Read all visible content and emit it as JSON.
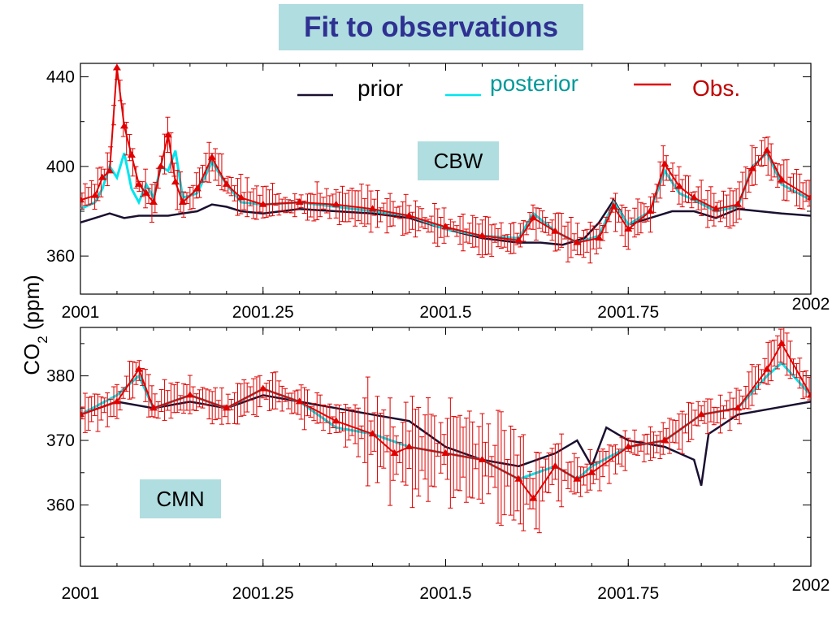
{
  "title": "Fit to observations",
  "y_axis_label_main": "CO",
  "y_axis_label_sub": "2",
  "y_axis_label_unit": " (ppm)",
  "legend": [
    {
      "label": "prior",
      "color": "#1a1030"
    },
    {
      "label": "posterior",
      "color": "#00e5ee"
    },
    {
      "label": "Obs.",
      "color": "#e00000"
    }
  ],
  "chart_data": [
    {
      "type": "line",
      "station": "CBW",
      "xlim": [
        2001,
        2002
      ],
      "ylim": [
        343,
        446
      ],
      "xticks": [
        2001,
        2001.25,
        2001.5,
        2001.75,
        2002
      ],
      "xtick_labels": [
        "2001",
        "2001.25",
        "2001.5",
        "2001.75",
        "2002"
      ],
      "yticks": [
        360,
        400,
        440
      ],
      "ytick_labels": [
        "360",
        "400",
        "440"
      ],
      "series": [
        {
          "name": "prior",
          "x": [
            2001.0,
            2001.02,
            2001.04,
            2001.06,
            2001.08,
            2001.1,
            2001.12,
            2001.14,
            2001.16,
            2001.18,
            2001.2,
            2001.22,
            2001.25,
            2001.3,
            2001.35,
            2001.4,
            2001.45,
            2001.5,
            2001.55,
            2001.6,
            2001.63,
            2001.66,
            2001.69,
            2001.71,
            2001.73,
            2001.75,
            2001.78,
            2001.81,
            2001.84,
            2001.87,
            2001.9,
            2001.93,
            2001.96,
            2002.0
          ],
          "y": [
            375,
            377,
            379,
            377,
            378,
            378,
            378,
            379,
            380,
            383,
            382,
            380,
            379,
            381,
            380,
            379,
            377,
            372,
            368,
            366,
            366,
            365,
            368,
            375,
            385,
            374,
            377,
            380,
            380,
            377,
            381,
            380,
            379,
            378
          ]
        },
        {
          "name": "posterior",
          "x": [
            2001.0,
            2001.02,
            2001.03,
            2001.04,
            2001.05,
            2001.06,
            2001.07,
            2001.08,
            2001.09,
            2001.1,
            2001.11,
            2001.12,
            2001.13,
            2001.14,
            2001.16,
            2001.18,
            2001.2,
            2001.22,
            2001.25,
            2001.3,
            2001.35,
            2001.4,
            2001.45,
            2001.5,
            2001.55,
            2001.6,
            2001.62,
            2001.65,
            2001.68,
            2001.71,
            2001.73,
            2001.75,
            2001.78,
            2001.8,
            2001.82,
            2001.84,
            2001.87,
            2001.9,
            2001.92,
            2001.94,
            2001.96,
            2002.0
          ],
          "y": [
            381,
            384,
            390,
            400,
            395,
            406,
            390,
            384,
            392,
            386,
            400,
            398,
            407,
            386,
            388,
            402,
            392,
            384,
            383,
            384,
            382,
            380,
            378,
            372,
            369,
            368,
            379,
            371,
            366,
            369,
            384,
            374,
            380,
            398,
            388,
            385,
            380,
            382,
            400,
            406,
            392,
            385
          ]
        },
        {
          "name": "Obs.",
          "x": [
            2001.0,
            2001.02,
            2001.03,
            2001.04,
            2001.05,
            2001.06,
            2001.07,
            2001.08,
            2001.09,
            2001.1,
            2001.11,
            2001.12,
            2001.13,
            2001.14,
            2001.16,
            2001.18,
            2001.2,
            2001.22,
            2001.25,
            2001.3,
            2001.35,
            2001.4,
            2001.45,
            2001.5,
            2001.55,
            2001.6,
            2001.62,
            2001.65,
            2001.68,
            2001.71,
            2001.73,
            2001.75,
            2001.78,
            2001.8,
            2001.82,
            2001.84,
            2001.87,
            2001.9,
            2001.92,
            2001.94,
            2001.96,
            2002.0
          ],
          "y": [
            385,
            387,
            395,
            398,
            444,
            418,
            405,
            392,
            388,
            384,
            400,
            414,
            393,
            384,
            390,
            404,
            392,
            386,
            383,
            384,
            383,
            381,
            378,
            373,
            369,
            367,
            377,
            371,
            366,
            368,
            382,
            372,
            380,
            401,
            391,
            386,
            381,
            383,
            399,
            407,
            394,
            386
          ]
        }
      ]
    },
    {
      "type": "line",
      "station": "CMN",
      "xlim": [
        2001,
        2002
      ],
      "ylim": [
        350.5,
        387.5
      ],
      "xticks": [
        2001,
        2001.25,
        2001.5,
        2001.75,
        2002
      ],
      "xtick_labels": [
        "2001",
        "2001.25",
        "2001.5",
        "2001.75",
        "2002"
      ],
      "yticks": [
        360,
        370,
        380
      ],
      "ytick_labels": [
        "360",
        "370",
        "380"
      ],
      "series": [
        {
          "name": "prior",
          "x": [
            2001.0,
            2001.05,
            2001.1,
            2001.15,
            2001.2,
            2001.25,
            2001.3,
            2001.35,
            2001.4,
            2001.45,
            2001.5,
            2001.55,
            2001.6,
            2001.65,
            2001.68,
            2001.7,
            2001.72,
            2001.75,
            2001.8,
            2001.84,
            2001.85,
            2001.86,
            2001.9,
            2001.95,
            2002.0
          ],
          "y": [
            374,
            376,
            375,
            376,
            375,
            377,
            376,
            375,
            374,
            373,
            369,
            367,
            366,
            368,
            370,
            366,
            372,
            370,
            369,
            367,
            363,
            371,
            374,
            375,
            376
          ]
        },
        {
          "name": "posterior",
          "x": [
            2001.0,
            2001.05,
            2001.08,
            2001.1,
            2001.15,
            2001.2,
            2001.25,
            2001.3,
            2001.35,
            2001.4,
            2001.45,
            2001.5,
            2001.55,
            2001.6,
            2001.65,
            2001.68,
            2001.7,
            2001.75,
            2001.8,
            2001.85,
            2001.9,
            2001.94,
            2001.96,
            2002.0
          ],
          "y": [
            374,
            377,
            380,
            375,
            377,
            375,
            378,
            376,
            372,
            371,
            369,
            368,
            367,
            364,
            366,
            364,
            366,
            369,
            370,
            374,
            375,
            380,
            382,
            377
          ]
        },
        {
          "name": "Obs.",
          "x": [
            2001.0,
            2001.05,
            2001.08,
            2001.1,
            2001.15,
            2001.2,
            2001.25,
            2001.3,
            2001.35,
            2001.4,
            2001.43,
            2001.45,
            2001.5,
            2001.55,
            2001.6,
            2001.62,
            2001.65,
            2001.68,
            2001.7,
            2001.75,
            2001.8,
            2001.85,
            2001.9,
            2001.94,
            2001.96,
            2002.0
          ],
          "y": [
            374,
            376,
            381,
            375,
            377,
            375,
            378,
            376,
            373,
            371,
            368,
            369,
            368,
            367,
            364,
            361,
            366,
            364,
            365,
            369,
            370,
            374,
            375,
            381,
            385,
            377
          ]
        }
      ]
    }
  ]
}
